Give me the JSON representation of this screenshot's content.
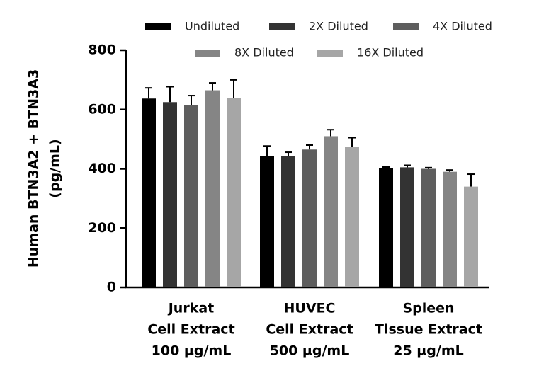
{
  "chart_data": {
    "type": "bar",
    "ylabel": [
      "Human BTN3A2 + BTN3A3",
      "(pg/mL)"
    ],
    "categories": [
      [
        "Jurkat",
        "Cell Extract",
        "100 µg/mL"
      ],
      [
        "HUVEC",
        "Cell Extract",
        "500 µg/mL"
      ],
      [
        "Spleen",
        "Tissue Extract",
        "25 µg/mL"
      ]
    ],
    "series": [
      {
        "name": "Undiluted",
        "color": "#000000",
        "values": [
          637,
          442,
          403
        ],
        "errors": [
          36,
          35,
          3
        ]
      },
      {
        "name": "2X Diluted",
        "color": "#333333",
        "values": [
          625,
          442,
          405
        ],
        "errors": [
          52,
          14,
          7
        ]
      },
      {
        "name": "4X Diluted",
        "color": "#5e5e5e",
        "values": [
          615,
          465,
          400
        ],
        "errors": [
          32,
          15,
          4
        ]
      },
      {
        "name": "8X Diluted",
        "color": "#858585",
        "values": [
          665,
          510,
          390
        ],
        "errors": [
          25,
          22,
          6
        ]
      },
      {
        "name": "16X Diluted",
        "color": "#a6a6a6",
        "values": [
          640,
          475,
          340
        ],
        "errors": [
          60,
          30,
          42
        ]
      }
    ],
    "ylim": [
      0,
      800
    ],
    "yticks": [
      0,
      200,
      400,
      600,
      800
    ]
  }
}
